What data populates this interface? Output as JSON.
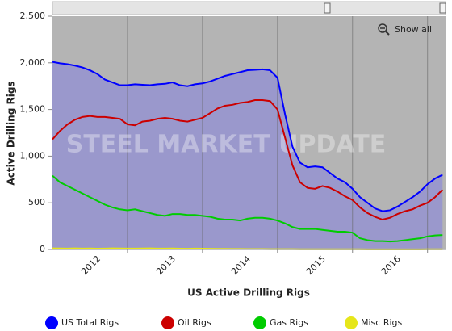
{
  "chart_data": {
    "type": "line",
    "title": "US Active Drilling Rigs",
    "y_label": "Active Drilling Rigs",
    "watermark": "STEEL MARKET UPDATE",
    "reset_button": "Show all",
    "x": [
      2011.0,
      2011.1,
      2011.2,
      2011.3,
      2011.4,
      2011.5,
      2011.6,
      2011.7,
      2011.8,
      2011.9,
      2012.0,
      2012.1,
      2012.2,
      2012.3,
      2012.4,
      2012.5,
      2012.6,
      2012.7,
      2012.8,
      2012.9,
      2013.0,
      2013.1,
      2013.2,
      2013.3,
      2013.4,
      2013.5,
      2013.6,
      2013.7,
      2013.8,
      2013.9,
      2014.0,
      2014.1,
      2014.2,
      2014.3,
      2014.4,
      2014.5,
      2014.6,
      2014.7,
      2014.8,
      2014.9,
      2015.0,
      2015.1,
      2015.2,
      2015.3,
      2015.4,
      2015.5,
      2015.6,
      2015.7,
      2015.8,
      2015.9,
      2016.0,
      2016.1,
      2016.2
    ],
    "xlim": [
      2011.0,
      2016.24
    ],
    "xticks": [
      2012,
      2013,
      2014,
      2015,
      2016
    ],
    "ylim": [
      0,
      2500
    ],
    "yticks": [
      0,
      {
        "value": 500,
        "label": "500"
      },
      {
        "value": 1000,
        "label": "1,000"
      },
      {
        "value": 1500,
        "label": "1,500"
      },
      {
        "value": 2000,
        "label": "2,000"
      },
      {
        "value": 2500,
        "label": "2,500"
      }
    ],
    "grid": true,
    "fill_first_series": true,
    "fill_color": "#9a98cc",
    "background": "#b4b4b4",
    "series": [
      {
        "name": "US Total Rigs",
        "color": "#0000ff",
        "values": [
          2010,
          1995,
          1985,
          1970,
          1950,
          1920,
          1880,
          1820,
          1790,
          1760,
          1760,
          1770,
          1765,
          1760,
          1770,
          1775,
          1790,
          1760,
          1750,
          1770,
          1780,
          1800,
          1830,
          1860,
          1880,
          1900,
          1920,
          1925,
          1930,
          1920,
          1840,
          1450,
          1100,
          930,
          880,
          890,
          880,
          820,
          760,
          720,
          650,
          560,
          500,
          440,
          410,
          420,
          460,
          510,
          560,
          620,
          700,
          760,
          800
        ]
      },
      {
        "name": "Oil Rigs",
        "color": "#cc0000",
        "values": [
          1180,
          1270,
          1340,
          1390,
          1420,
          1430,
          1420,
          1420,
          1410,
          1400,
          1340,
          1330,
          1370,
          1380,
          1400,
          1410,
          1400,
          1380,
          1370,
          1390,
          1410,
          1460,
          1510,
          1540,
          1550,
          1570,
          1580,
          1600,
          1600,
          1590,
          1500,
          1200,
          900,
          720,
          660,
          650,
          680,
          660,
          620,
          570,
          530,
          450,
          390,
          350,
          320,
          340,
          380,
          410,
          430,
          470,
          500,
          560,
          640
        ]
      },
      {
        "name": "Gas Rigs",
        "color": "#00cc00",
        "values": [
          790,
          720,
          680,
          640,
          600,
          560,
          520,
          480,
          450,
          430,
          420,
          430,
          410,
          390,
          370,
          360,
          380,
          380,
          370,
          370,
          360,
          350,
          330,
          320,
          320,
          310,
          330,
          340,
          340,
          330,
          310,
          280,
          240,
          220,
          220,
          220,
          210,
          200,
          190,
          190,
          180,
          120,
          100,
          90,
          90,
          85,
          90,
          100,
          110,
          120,
          140,
          150,
          155
        ]
      },
      {
        "name": "Misc Rigs",
        "color": "#e6e61a",
        "values": [
          12,
          11,
          10,
          12,
          10,
          11,
          9,
          10,
          12,
          11,
          10,
          10,
          11,
          12,
          10,
          10,
          11,
          9,
          8,
          10,
          9,
          8,
          7,
          6,
          5,
          5,
          4,
          4,
          4,
          3,
          3,
          3,
          3,
          2,
          2,
          2,
          2,
          2,
          2,
          2,
          2,
          2,
          1,
          1,
          1,
          1,
          1,
          1,
          1,
          1,
          2,
          2,
          2
        ]
      }
    ]
  }
}
